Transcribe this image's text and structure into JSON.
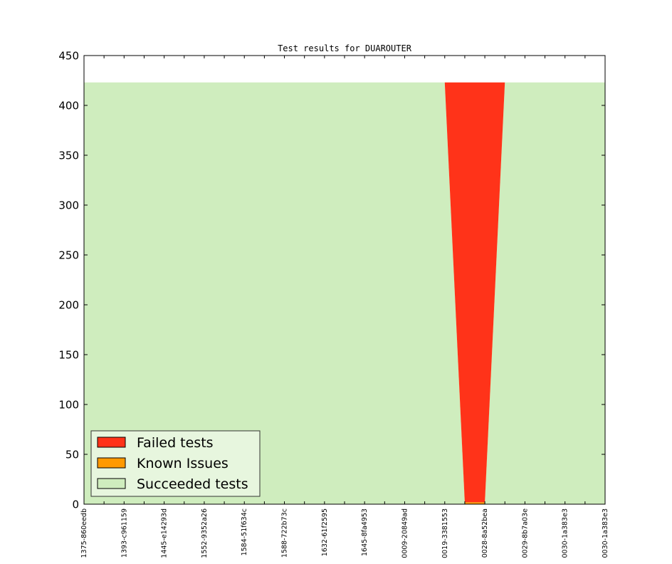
{
  "chart_data": {
    "type": "area",
    "stacked": true,
    "title": "Test results for DUAROUTER",
    "xlabel": "",
    "ylabel": "",
    "ylim": [
      0,
      450
    ],
    "yticks": [
      0,
      50,
      100,
      150,
      200,
      250,
      300,
      350,
      400,
      450
    ],
    "categories": [
      "1375-860eedb",
      "1393-c961159",
      "1445-e14293d",
      "1552-9352a26",
      "1584-51f634c",
      "1588-722b73c",
      "1632-61f2595",
      "1645-8fa4953",
      "0009-20849ad",
      "0019-3381553",
      "0028-8a52bea",
      "0029-8b7a03e",
      "0030-1a383e3",
      "0030-1a383e3"
    ],
    "xlim": [
      0,
      26
    ],
    "x": [
      0,
      1,
      2,
      3,
      4,
      5,
      6,
      7,
      8,
      9,
      10,
      11,
      12,
      13,
      14,
      15,
      16,
      17,
      18,
      19,
      20,
      21,
      22,
      23,
      24,
      25,
      26
    ],
    "series": [
      {
        "name": "Succeeded tests",
        "color": "#cfedbe",
        "values": [
          423,
          423,
          423,
          423,
          423,
          423,
          423,
          423,
          423,
          423,
          423,
          423,
          423,
          423,
          423,
          423,
          423,
          423,
          423,
          0,
          0,
          423,
          423,
          423,
          423,
          423,
          423
        ]
      },
      {
        "name": "Known Issues",
        "color": "#ff9900",
        "values": [
          0,
          0,
          0,
          0,
          0,
          0,
          0,
          0,
          0,
          0,
          0,
          0,
          0,
          0,
          0,
          0,
          0,
          0,
          0,
          2,
          2,
          0,
          0,
          0,
          0,
          0,
          0
        ]
      },
      {
        "name": "Failed tests",
        "color": "#ff3319",
        "values": [
          0,
          0,
          0,
          0,
          0,
          0,
          0,
          0,
          0,
          0,
          0,
          0,
          0,
          0,
          0,
          0,
          0,
          0,
          0,
          421,
          421,
          0,
          0,
          0,
          0,
          0,
          0
        ]
      }
    ],
    "legend": {
      "position": "lower-left",
      "entries": [
        "Failed tests",
        "Known Issues",
        "Succeeded tests"
      ]
    },
    "grid": false
  }
}
